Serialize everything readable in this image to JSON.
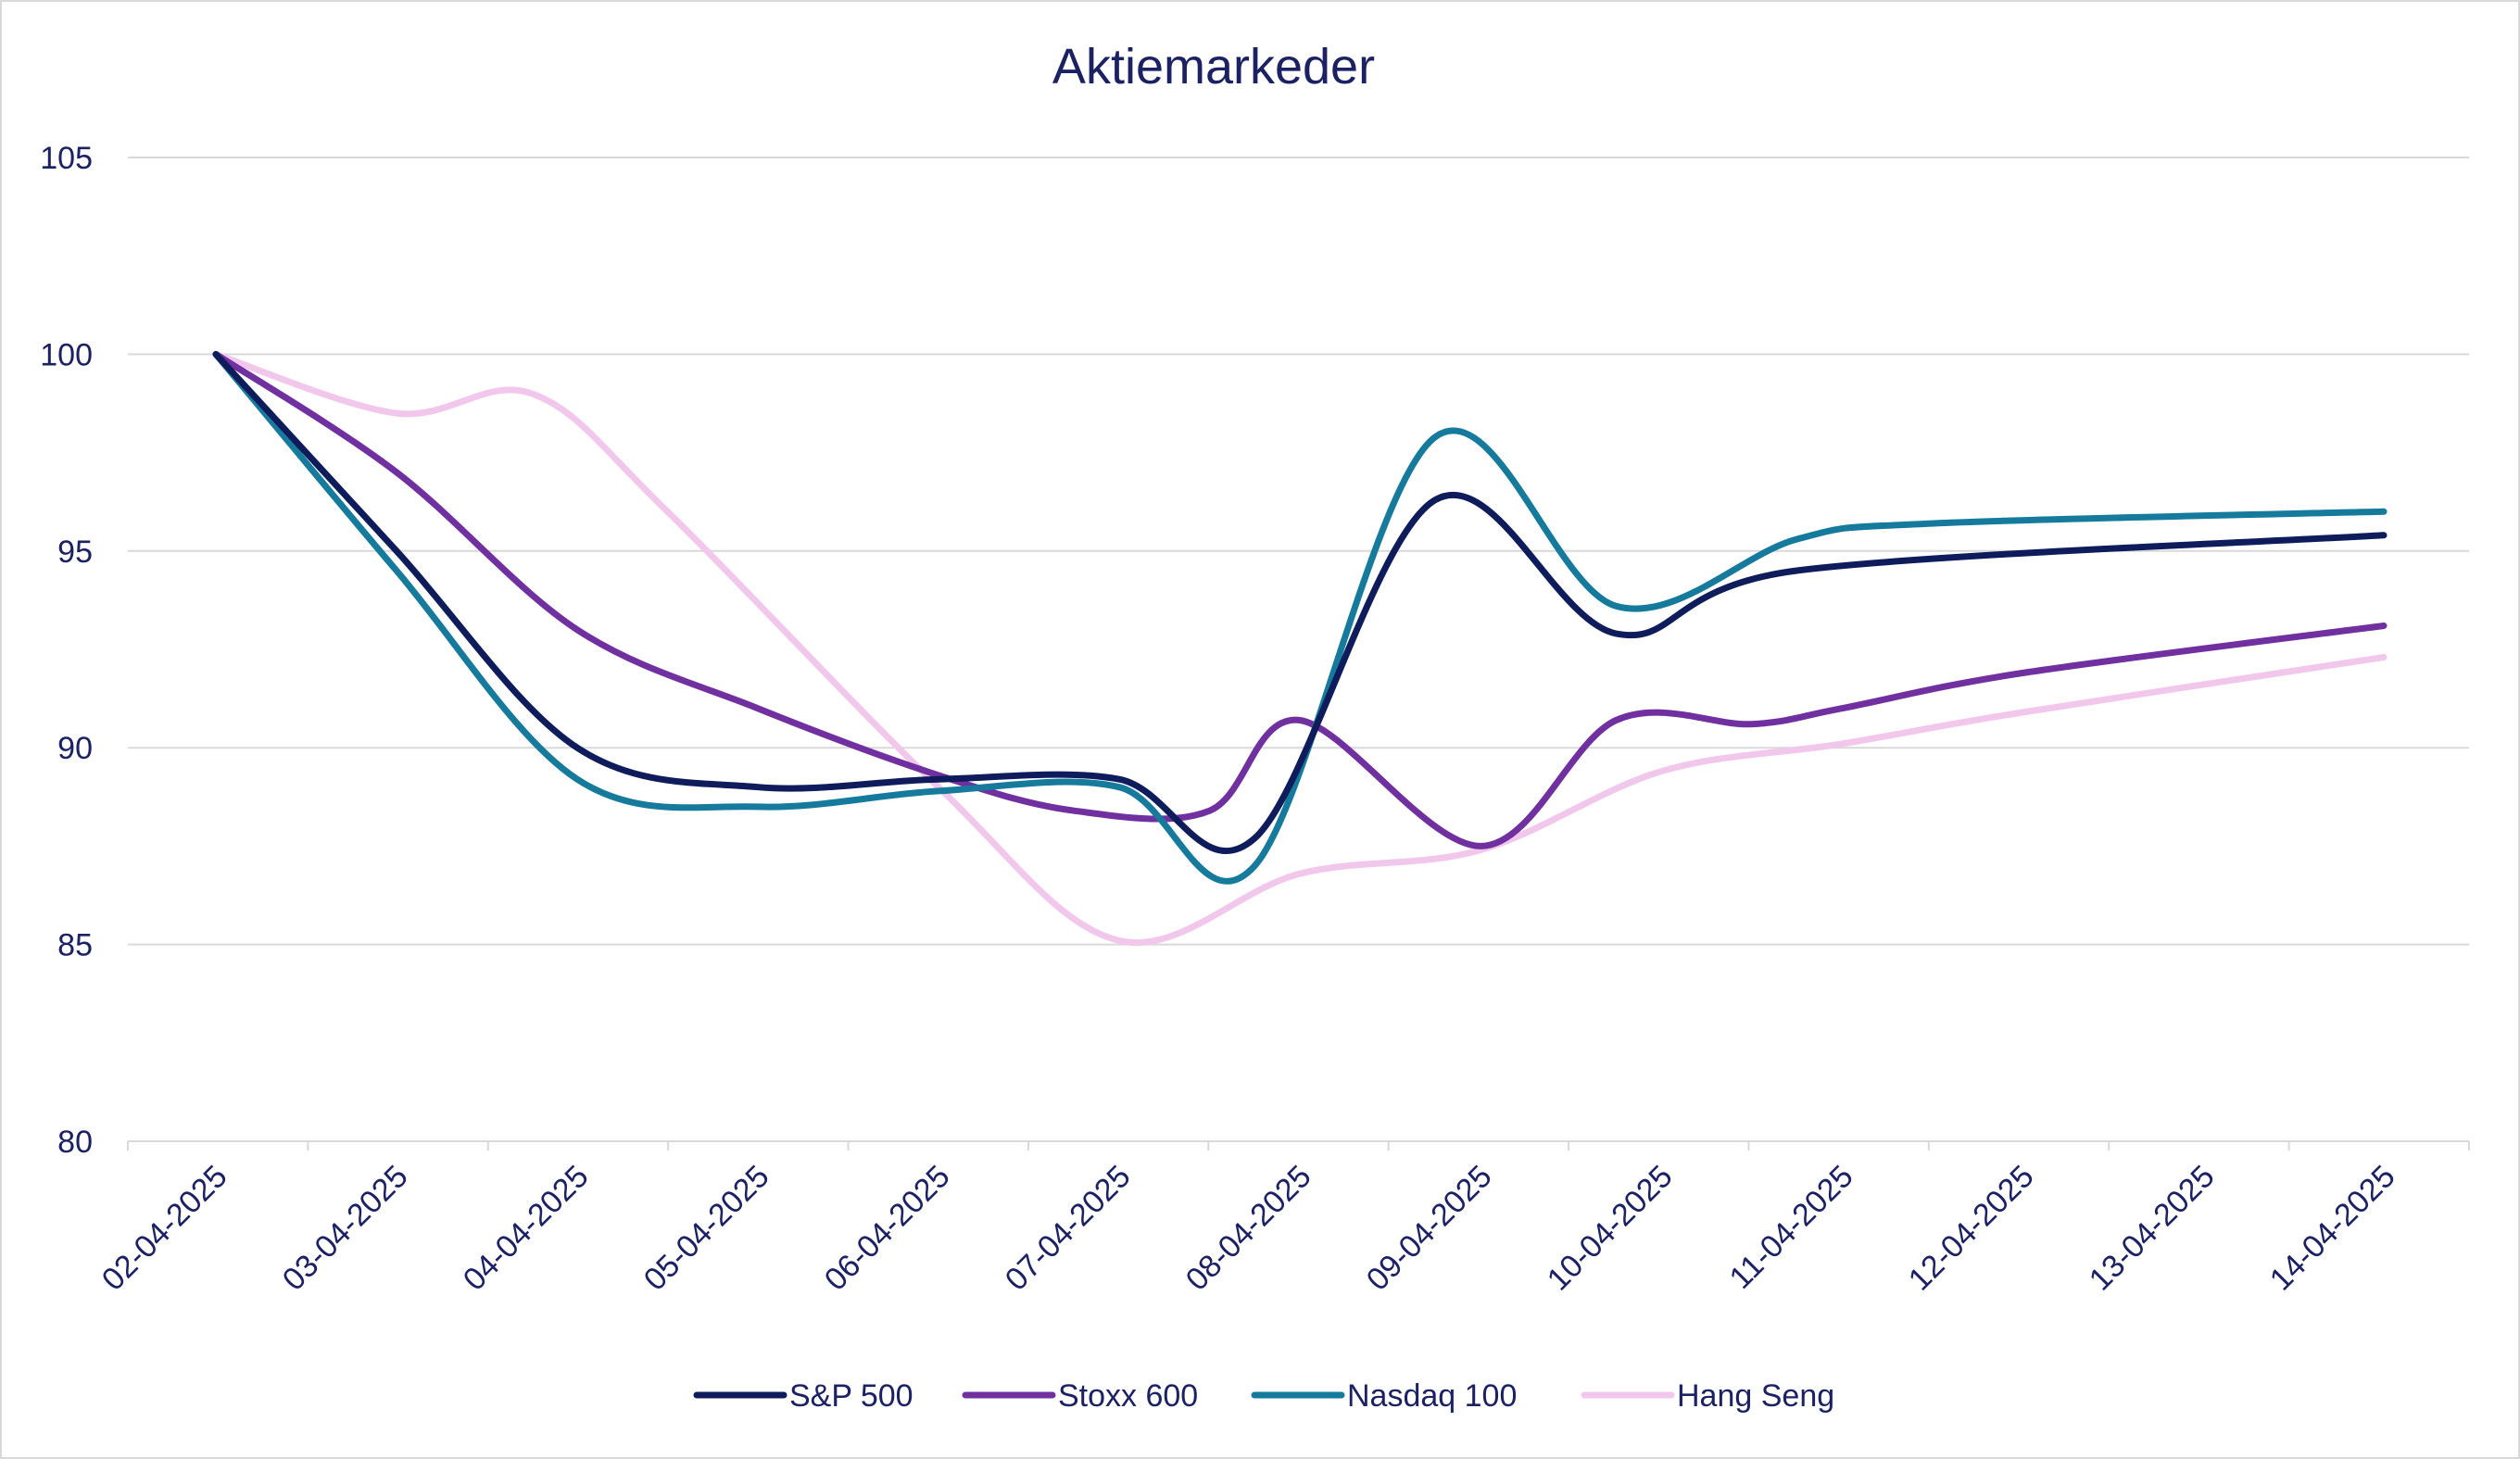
{
  "chart_data": {
    "type": "line",
    "title": "Aktiemarkeder",
    "xlabel": "",
    "ylabel": "",
    "ylim": [
      80,
      105
    ],
    "yticks": [
      80,
      85,
      90,
      95,
      100,
      105
    ],
    "grid": true,
    "legend_position": "bottom",
    "x": [
      "02-04-2025",
      "03-04-2025",
      "04-04-2025",
      "05-04-2025",
      "06-04-2025",
      "07-04-2025",
      "08-04-2025",
      "09-04-2025",
      "10-04-2025",
      "11-04-2025",
      "12-04-2025",
      "13-04-2025",
      "14-04-2025"
    ],
    "series": [
      {
        "name": "S&P 500",
        "color": "#0f1c5c",
        "points": [
          [
            0,
            100
          ],
          [
            1,
            95
          ],
          [
            2,
            90
          ],
          [
            3,
            89
          ],
          [
            4,
            89.2
          ],
          [
            5,
            89.2
          ],
          [
            5.75,
            87.7
          ],
          [
            6.75,
            96.3
          ],
          [
            7.75,
            92.9
          ],
          [
            8.75,
            94.5
          ],
          [
            12,
            95.4
          ]
        ]
      },
      {
        "name": "Stoxx 600",
        "color": "#7030a0",
        "points": [
          [
            0,
            100
          ],
          [
            1,
            97
          ],
          [
            2,
            93
          ],
          [
            3,
            91
          ],
          [
            4,
            89.3
          ],
          [
            4.75,
            88.4
          ],
          [
            5.5,
            88.4
          ],
          [
            6,
            90.7
          ],
          [
            7,
            87.5
          ],
          [
            7.75,
            90.7
          ],
          [
            8.5,
            90.6
          ],
          [
            9,
            91
          ],
          [
            10,
            91.9
          ],
          [
            12,
            93.1
          ]
        ]
      },
      {
        "name": "Nasdaq 100",
        "color": "#167a9c",
        "points": [
          [
            0,
            100
          ],
          [
            1,
            94.5
          ],
          [
            2,
            89.2
          ],
          [
            3,
            88.5
          ],
          [
            4,
            88.9
          ],
          [
            5,
            89
          ],
          [
            5.75,
            87
          ],
          [
            6.75,
            97.9
          ],
          [
            7.75,
            93.6
          ],
          [
            8.75,
            95.3
          ],
          [
            9.5,
            95.7
          ],
          [
            12,
            96
          ]
        ]
      },
      {
        "name": "Hang Seng",
        "color": "#f2c7ec",
        "points": [
          [
            0,
            100
          ],
          [
            1,
            98.5
          ],
          [
            1.75,
            99
          ],
          [
            2.5,
            96
          ],
          [
            4,
            89
          ],
          [
            5,
            85.1
          ],
          [
            6,
            86.8
          ],
          [
            7,
            87.4
          ],
          [
            8,
            89.4
          ],
          [
            9,
            90.1
          ],
          [
            10,
            90.9
          ],
          [
            12,
            92.3
          ]
        ]
      }
    ]
  }
}
